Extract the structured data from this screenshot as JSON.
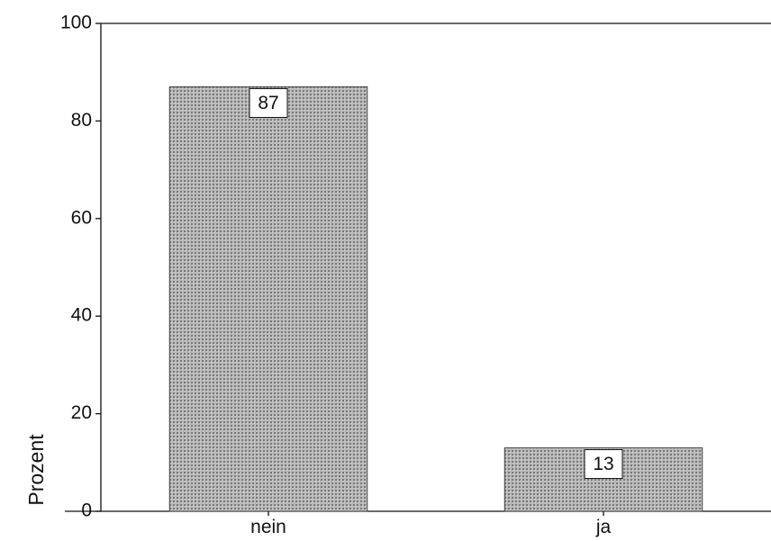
{
  "chart_data": {
    "type": "bar",
    "categories": [
      "nein",
      "ja"
    ],
    "values": [
      87,
      13
    ],
    "data_labels": [
      "87",
      "13"
    ],
    "ylabel": "Prozent",
    "ylim": [
      0,
      100
    ],
    "yticks": [
      "0",
      "20",
      "40",
      "60",
      "80",
      "100"
    ],
    "grid": false,
    "legend": "none",
    "bar_color": "#a9a9a9",
    "bar_pattern": "fine dot screen"
  }
}
